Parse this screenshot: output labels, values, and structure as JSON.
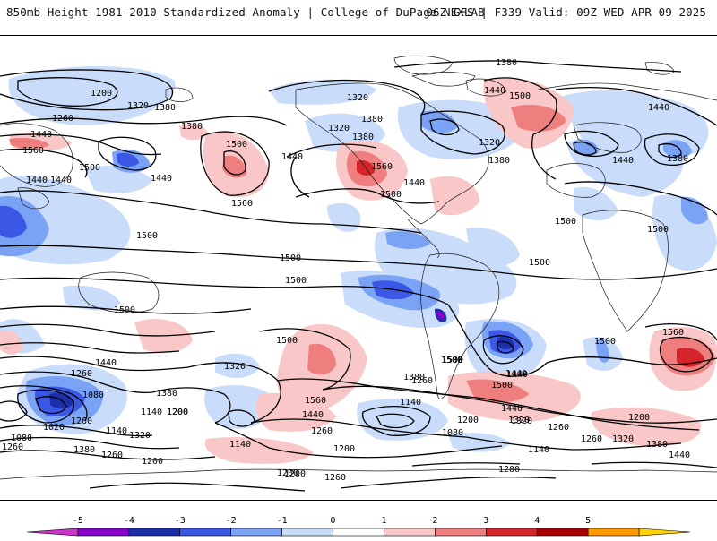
{
  "header": {
    "title_left": "850mb Height 1981–2010 Standardized Anomaly | College of DuPage NEXLAB",
    "title_right": "06Z GFS | F339 Valid: 09Z WED APR 09 2025"
  },
  "colorbar": {
    "ticks": [
      "-5",
      "-4",
      "-3",
      "-2",
      "-1",
      "0",
      "1",
      "2",
      "3",
      "4",
      "5"
    ],
    "colors": [
      "#cc33cc",
      "#8800cc",
      "#1a2fa8",
      "#3b57e6",
      "#7aa2f5",
      "#c9dcfa",
      "#ffffff",
      "#f9c7c7",
      "#ef7f7f",
      "#d4262a",
      "#a80000",
      "#ff9a00",
      "#ffd200"
    ]
  },
  "contour_labels": [
    "1380",
    "1200",
    "1320",
    "1380",
    "1320",
    "1320",
    "1440",
    "1500",
    "1440",
    "1260",
    "1380",
    "1380",
    "1440",
    "1560",
    "1500",
    "1440",
    "1500",
    "1440",
    "1320",
    "1440",
    "1380",
    "1560",
    "1500",
    "1380",
    "1440",
    "1440",
    "1500",
    "1380",
    "1440",
    "1560",
    "1500",
    "1500",
    "1500",
    "1500",
    "1500",
    "1500",
    "1560",
    "1500",
    "1440",
    "1320",
    "1500",
    "1500",
    "1440",
    "1260",
    "1380",
    "1080",
    "1260",
    "1200",
    "1020",
    "1260",
    "1140",
    "1200",
    "1320",
    "1140",
    "1080",
    "1380",
    "1260",
    "1200",
    "1140",
    "1560",
    "1440",
    "1260",
    "1200",
    "1260",
    "1200",
    "1380",
    "1140",
    "1080",
    "1200",
    "1320",
    "1500",
    "1440",
    "1500",
    "1440",
    "1320",
    "1260",
    "1200",
    "1140",
    "1260",
    "1320",
    "1380",
    "1440",
    "1200",
    "1260",
    "1200"
  ],
  "colors": {
    "land_outline": "#1a1a1a",
    "contour": "#000000"
  }
}
